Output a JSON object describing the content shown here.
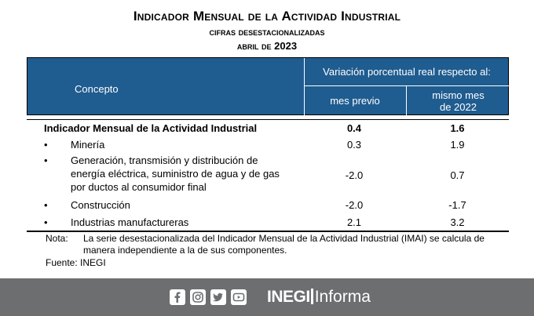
{
  "title": {
    "line1": "Indicador Mensual de la Actividad Industrial",
    "line2": "cifras desestacionalizadas",
    "line3": "abril de 2023"
  },
  "table": {
    "header": {
      "concept": "Concepto",
      "variation": "Variación porcentual real respecto al:",
      "col1": "mes previo",
      "col2_line1": "mismo mes",
      "col2_line2": "de 2022"
    },
    "rows": [
      {
        "label": "Indicador Mensual de la Actividad Industrial",
        "prev": "0.4",
        "year": "1.6",
        "bold": true
      },
      {
        "label": "Minería",
        "prev": "0.3",
        "year": "1.9"
      },
      {
        "label_line1": "Generación, transmisión y distribución de",
        "label_line2": "energía eléctrica, suministro de agua y de gas",
        "label_line3": "por ductos al consumidor final",
        "prev": "-2.0",
        "year": "0.7"
      },
      {
        "label": "Construcción",
        "prev": "-2.0",
        "year": "-1.7"
      },
      {
        "label": "Industrias manufactureras",
        "prev": "2.1",
        "year": "3.2"
      }
    ],
    "bullet": "•"
  },
  "note": {
    "key": "Nota:",
    "text": "La serie desestacionalizada del Indicador Mensual de la Actividad Industrial (IMAI) se calcula de manera independiente a la de sus componentes.",
    "source": "Fuente: INEGI"
  },
  "footer": {
    "brand_bold": "INEGI",
    "brand_light": "Informa",
    "icons": [
      "facebook-icon",
      "instagram-icon",
      "twitter-icon",
      "youtube-icon"
    ]
  },
  "colors": {
    "header_bg": "#1f5c90",
    "footer_bg": "#6d6e70"
  }
}
